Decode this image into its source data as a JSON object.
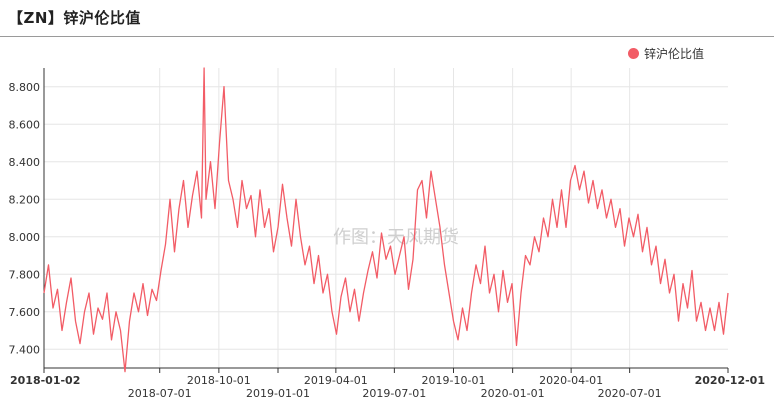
{
  "header": {
    "title": "【ZN】锌沪伦比值"
  },
  "colors": {
    "series": "#f25c66",
    "grid": "#e6e6e6",
    "axis": "#333333"
  },
  "watermark": "作图：天风期货",
  "chart_data": {
    "type": "line",
    "title": "【ZN】锌沪伦比值",
    "xlabel": "",
    "ylabel": "",
    "ylim": [
      7.3,
      8.9
    ],
    "yticks": [
      7.4,
      7.6,
      7.8,
      8.0,
      8.2,
      8.4,
      8.6,
      8.8
    ],
    "ytick_labels": [
      "7.400",
      "7.600",
      "7.800",
      "8.000",
      "8.200",
      "8.400",
      "8.600",
      "8.800"
    ],
    "xlim": [
      "2018-01-02",
      "2020-12-01"
    ],
    "xticks": [
      {
        "date": "2018-01-02",
        "label": "2018-01-02",
        "row": 0,
        "edge": true
      },
      {
        "date": "2018-07-01",
        "label": "2018-07-01",
        "row": 1
      },
      {
        "date": "2018-10-01",
        "label": "2018-10-01",
        "row": 0
      },
      {
        "date": "2019-01-01",
        "label": "2019-01-01",
        "row": 1
      },
      {
        "date": "2019-04-01",
        "label": "2019-04-01",
        "row": 0
      },
      {
        "date": "2019-07-01",
        "label": "2019-07-01",
        "row": 1
      },
      {
        "date": "2019-10-01",
        "label": "2019-10-01",
        "row": 0
      },
      {
        "date": "2020-01-01",
        "label": "2020-01-01",
        "row": 1
      },
      {
        "date": "2020-04-01",
        "label": "2020-04-01",
        "row": 0
      },
      {
        "date": "2020-07-01",
        "label": "2020-07-01",
        "row": 1
      },
      {
        "date": "2020-12-01",
        "label": "2020-12-01",
        "row": 0,
        "edge": true
      }
    ],
    "grid": true,
    "legend": "top-right",
    "series": [
      {
        "name": "锌沪伦比值",
        "points": [
          [
            "2018-01-02",
            7.7
          ],
          [
            "2018-01-09",
            7.85
          ],
          [
            "2018-01-16",
            7.62
          ],
          [
            "2018-01-23",
            7.72
          ],
          [
            "2018-01-30",
            7.5
          ],
          [
            "2018-02-06",
            7.65
          ],
          [
            "2018-02-13",
            7.78
          ],
          [
            "2018-02-20",
            7.55
          ],
          [
            "2018-02-27",
            7.43
          ],
          [
            "2018-03-06",
            7.6
          ],
          [
            "2018-03-13",
            7.7
          ],
          [
            "2018-03-20",
            7.48
          ],
          [
            "2018-03-27",
            7.62
          ],
          [
            "2018-04-03",
            7.56
          ],
          [
            "2018-04-10",
            7.7
          ],
          [
            "2018-04-17",
            7.45
          ],
          [
            "2018-04-24",
            7.6
          ],
          [
            "2018-05-01",
            7.5
          ],
          [
            "2018-05-08",
            7.28
          ],
          [
            "2018-05-15",
            7.55
          ],
          [
            "2018-05-22",
            7.7
          ],
          [
            "2018-05-29",
            7.6
          ],
          [
            "2018-06-05",
            7.75
          ],
          [
            "2018-06-12",
            7.58
          ],
          [
            "2018-06-19",
            7.72
          ],
          [
            "2018-06-26",
            7.66
          ],
          [
            "2018-07-03",
            7.82
          ],
          [
            "2018-07-10",
            7.96
          ],
          [
            "2018-07-17",
            8.2
          ],
          [
            "2018-07-24",
            7.92
          ],
          [
            "2018-07-31",
            8.15
          ],
          [
            "2018-08-07",
            8.3
          ],
          [
            "2018-08-14",
            8.05
          ],
          [
            "2018-08-21",
            8.22
          ],
          [
            "2018-08-28",
            8.35
          ],
          [
            "2018-09-04",
            8.1
          ],
          [
            "2018-09-08",
            8.9
          ],
          [
            "2018-09-11",
            8.2
          ],
          [
            "2018-09-18",
            8.4
          ],
          [
            "2018-09-25",
            8.15
          ],
          [
            "2018-10-02",
            8.5
          ],
          [
            "2018-10-09",
            8.8
          ],
          [
            "2018-10-16",
            8.3
          ],
          [
            "2018-10-23",
            8.2
          ],
          [
            "2018-10-30",
            8.05
          ],
          [
            "2018-11-06",
            8.3
          ],
          [
            "2018-11-13",
            8.15
          ],
          [
            "2018-11-20",
            8.22
          ],
          [
            "2018-11-27",
            8.0
          ],
          [
            "2018-12-04",
            8.25
          ],
          [
            "2018-12-11",
            8.05
          ],
          [
            "2018-12-18",
            8.15
          ],
          [
            "2018-12-25",
            7.92
          ],
          [
            "2019-01-01",
            8.05
          ],
          [
            "2019-01-08",
            8.28
          ],
          [
            "2019-01-15",
            8.1
          ],
          [
            "2019-01-22",
            7.95
          ],
          [
            "2019-01-29",
            8.2
          ],
          [
            "2019-02-05",
            8.0
          ],
          [
            "2019-02-12",
            7.85
          ],
          [
            "2019-02-19",
            7.95
          ],
          [
            "2019-02-26",
            7.75
          ],
          [
            "2019-03-05",
            7.9
          ],
          [
            "2019-03-12",
            7.7
          ],
          [
            "2019-03-19",
            7.8
          ],
          [
            "2019-03-26",
            7.6
          ],
          [
            "2019-04-02",
            7.48
          ],
          [
            "2019-04-09",
            7.68
          ],
          [
            "2019-04-16",
            7.78
          ],
          [
            "2019-04-23",
            7.6
          ],
          [
            "2019-04-30",
            7.72
          ],
          [
            "2019-05-07",
            7.55
          ],
          [
            "2019-05-14",
            7.7
          ],
          [
            "2019-05-21",
            7.82
          ],
          [
            "2019-05-28",
            7.92
          ],
          [
            "2019-06-04",
            7.78
          ],
          [
            "2019-06-11",
            8.02
          ],
          [
            "2019-06-18",
            7.88
          ],
          [
            "2019-06-25",
            7.95
          ],
          [
            "2019-07-02",
            7.8
          ],
          [
            "2019-07-09",
            7.9
          ],
          [
            "2019-07-16",
            8.0
          ],
          [
            "2019-07-23",
            7.72
          ],
          [
            "2019-07-30",
            7.88
          ],
          [
            "2019-08-06",
            8.25
          ],
          [
            "2019-08-13",
            8.3
          ],
          [
            "2019-08-20",
            8.1
          ],
          [
            "2019-08-27",
            8.35
          ],
          [
            "2019-09-03",
            8.2
          ],
          [
            "2019-09-10",
            8.05
          ],
          [
            "2019-09-17",
            7.85
          ],
          [
            "2019-09-24",
            7.7
          ],
          [
            "2019-10-01",
            7.55
          ],
          [
            "2019-10-08",
            7.45
          ],
          [
            "2019-10-15",
            7.62
          ],
          [
            "2019-10-22",
            7.5
          ],
          [
            "2019-10-29",
            7.7
          ],
          [
            "2019-11-05",
            7.85
          ],
          [
            "2019-11-12",
            7.75
          ],
          [
            "2019-11-19",
            7.95
          ],
          [
            "2019-11-26",
            7.7
          ],
          [
            "2019-12-03",
            7.8
          ],
          [
            "2019-12-10",
            7.6
          ],
          [
            "2019-12-17",
            7.82
          ],
          [
            "2019-12-24",
            7.65
          ],
          [
            "2019-12-31",
            7.75
          ],
          [
            "2020-01-07",
            7.42
          ],
          [
            "2020-01-14",
            7.7
          ],
          [
            "2020-01-21",
            7.9
          ],
          [
            "2020-01-28",
            7.85
          ],
          [
            "2020-02-04",
            8.0
          ],
          [
            "2020-02-11",
            7.92
          ],
          [
            "2020-02-18",
            8.1
          ],
          [
            "2020-02-25",
            8.0
          ],
          [
            "2020-03-03",
            8.2
          ],
          [
            "2020-03-10",
            8.05
          ],
          [
            "2020-03-17",
            8.25
          ],
          [
            "2020-03-24",
            8.05
          ],
          [
            "2020-03-31",
            8.3
          ],
          [
            "2020-04-07",
            8.38
          ],
          [
            "2020-04-14",
            8.25
          ],
          [
            "2020-04-21",
            8.35
          ],
          [
            "2020-04-28",
            8.18
          ],
          [
            "2020-05-05",
            8.3
          ],
          [
            "2020-05-12",
            8.15
          ],
          [
            "2020-05-19",
            8.25
          ],
          [
            "2020-05-26",
            8.1
          ],
          [
            "2020-06-02",
            8.2
          ],
          [
            "2020-06-09",
            8.05
          ],
          [
            "2020-06-16",
            8.15
          ],
          [
            "2020-06-23",
            7.95
          ],
          [
            "2020-06-30",
            8.1
          ],
          [
            "2020-07-07",
            8.0
          ],
          [
            "2020-07-14",
            8.12
          ],
          [
            "2020-07-21",
            7.92
          ],
          [
            "2020-07-28",
            8.05
          ],
          [
            "2020-08-04",
            7.85
          ],
          [
            "2020-08-11",
            7.95
          ],
          [
            "2020-08-18",
            7.75
          ],
          [
            "2020-08-25",
            7.88
          ],
          [
            "2020-09-01",
            7.7
          ],
          [
            "2020-09-08",
            7.8
          ],
          [
            "2020-09-15",
            7.55
          ],
          [
            "2020-09-22",
            7.75
          ],
          [
            "2020-09-29",
            7.62
          ],
          [
            "2020-10-06",
            7.82
          ],
          [
            "2020-10-13",
            7.55
          ],
          [
            "2020-10-20",
            7.65
          ],
          [
            "2020-10-27",
            7.5
          ],
          [
            "2020-11-03",
            7.62
          ],
          [
            "2020-11-10",
            7.5
          ],
          [
            "2020-11-17",
            7.65
          ],
          [
            "2020-11-24",
            7.48
          ],
          [
            "2020-12-01",
            7.7
          ]
        ]
      }
    ]
  }
}
